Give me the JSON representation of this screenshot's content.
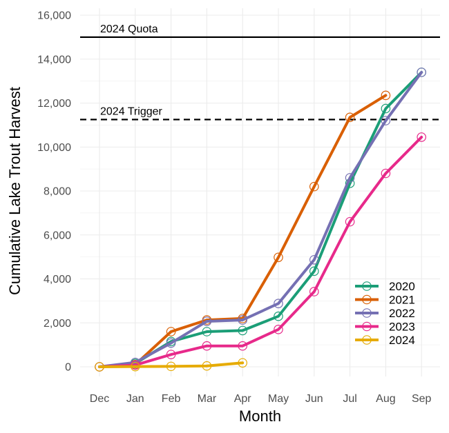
{
  "chart_data": {
    "type": "line",
    "xlabel": "Month",
    "ylabel": "Cumulative Lake Trout Harvest",
    "categories": [
      "Dec",
      "Jan",
      "Feb",
      "Mar",
      "Apr",
      "May",
      "Jun",
      "Jul",
      "Aug",
      "Sep"
    ],
    "ylim": [
      0,
      16000
    ],
    "yticks": [
      0,
      2000,
      4000,
      6000,
      8000,
      10000,
      12000,
      14000,
      16000
    ],
    "ytick_labels": [
      "0",
      "2,000",
      "4,000",
      "6,000",
      "8,000",
      "10,000",
      "12,000",
      "14,000",
      "16,000"
    ],
    "grid": true,
    "legend_position": "bottom-right",
    "reference_lines": [
      {
        "label": "2024 Quota",
        "value": 15000,
        "style": "solid"
      },
      {
        "label": "2024 Trigger",
        "value": 11250,
        "style": "dashed"
      }
    ],
    "series": [
      {
        "name": "2020",
        "color": "#1b9e77",
        "values": [
          0,
          150,
          1150,
          1600,
          1650,
          2300,
          4350,
          8350,
          11750,
          13400
        ]
      },
      {
        "name": "2021",
        "color": "#d95f02",
        "values": [
          0,
          100,
          1600,
          2130,
          2200,
          4980,
          8200,
          11350,
          12350,
          null
        ]
      },
      {
        "name": "2022",
        "color": "#7570b3",
        "values": [
          0,
          200,
          1080,
          2070,
          2130,
          2880,
          4870,
          8600,
          11200,
          13400
        ]
      },
      {
        "name": "2023",
        "color": "#e7298a",
        "values": [
          0,
          80,
          560,
          950,
          950,
          1700,
          3420,
          6600,
          8800,
          10450
        ]
      },
      {
        "name": "2024",
        "color": "#e6ab02",
        "values": [
          0,
          10,
          20,
          40,
          180,
          null,
          null,
          null,
          null,
          null
        ]
      }
    ]
  }
}
